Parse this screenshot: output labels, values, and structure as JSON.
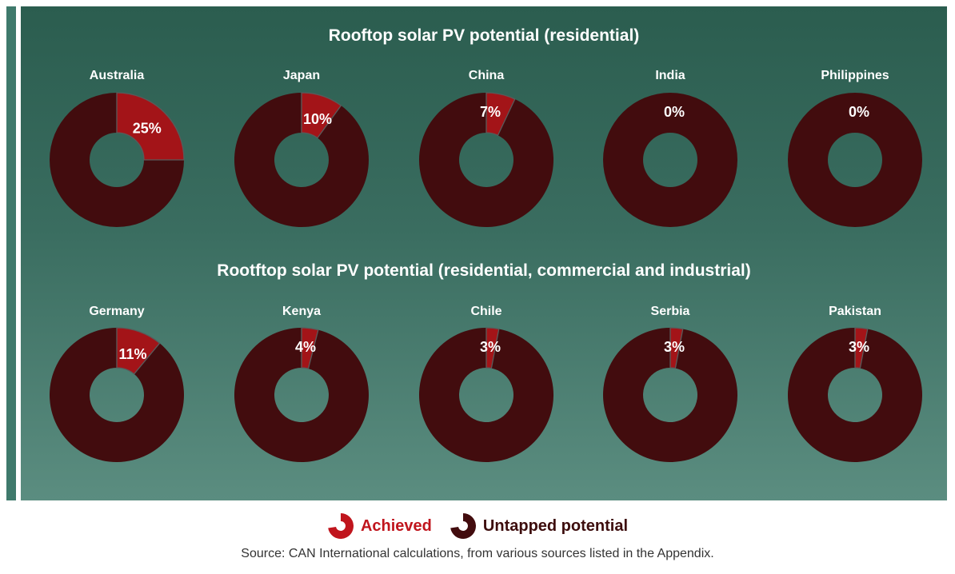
{
  "chart_data": [
    {
      "type": "pie",
      "title": "Rooftop solar PV potential (residential)",
      "categories": [
        "Australia",
        "Japan",
        "China",
        "India",
        "Philippines"
      ],
      "series": [
        {
          "name": "Achieved",
          "values": [
            25,
            10,
            7,
            0,
            0
          ]
        },
        {
          "name": "Untapped potential",
          "values": [
            75,
            90,
            93,
            100,
            100
          ]
        }
      ],
      "labels": [
        "25%",
        "10%",
        "7%",
        "0%",
        "0%"
      ]
    },
    {
      "type": "pie",
      "title": "Rootftop solar PV potential (residential, commercial and industrial)",
      "categories": [
        "Germany",
        "Kenya",
        "Chile",
        "Serbia",
        "Pakistan"
      ],
      "series": [
        {
          "name": "Achieved",
          "values": [
            11,
            4,
            3,
            3,
            3
          ]
        },
        {
          "name": "Untapped potential",
          "values": [
            89,
            96,
            97,
            97,
            97
          ]
        }
      ],
      "labels": [
        "11%",
        "4%",
        "3%",
        "3%",
        "3%"
      ]
    }
  ],
  "legend": {
    "achieved_label": "Achieved",
    "untapped_label": "Untapped potential",
    "placement": "bottom-center"
  },
  "source": "Source: CAN International calculations, from various sources listed in the Appendix.",
  "colors": {
    "achieved": "#a31418",
    "untapped": "#420c0e",
    "background_top": "#2b5d4f",
    "background_bottom": "#5b8d80",
    "legend_achieved_text": "#c0151d",
    "legend_untapped_text": "#3d0d0d"
  }
}
